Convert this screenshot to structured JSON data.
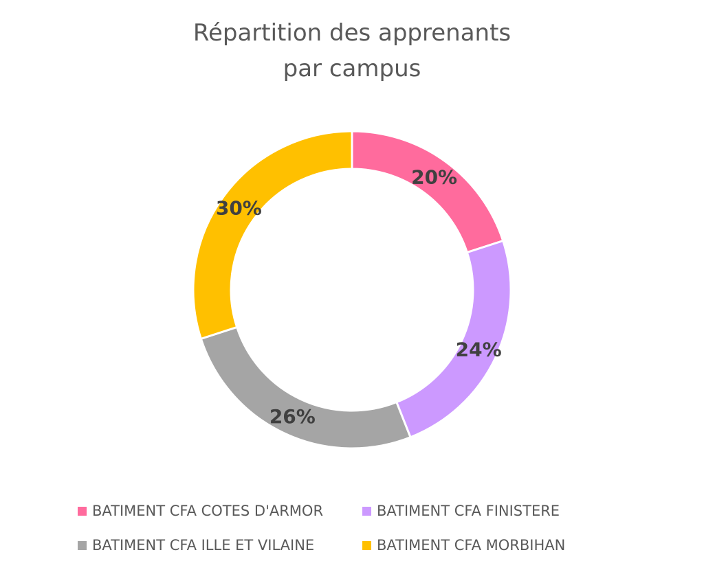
{
  "chart_data": {
    "type": "pie",
    "variant": "donut",
    "title": [
      "Répartition des apprenants",
      "par campus"
    ],
    "categories": [
      "BATIMENT CFA COTES D'ARMOR",
      "BATIMENT CFA FINISTERE",
      "BATIMENT CFA ILLE ET VILAINE",
      "BATIMENT CFA MORBIHAN"
    ],
    "values": [
      20,
      24,
      26,
      30
    ],
    "labels": [
      "20%",
      "24%",
      "26%",
      "30%"
    ],
    "colors": [
      "#FF6B9D",
      "#CC99FF",
      "#A5A5A5",
      "#FFC000"
    ],
    "legend_position": "bottom"
  }
}
